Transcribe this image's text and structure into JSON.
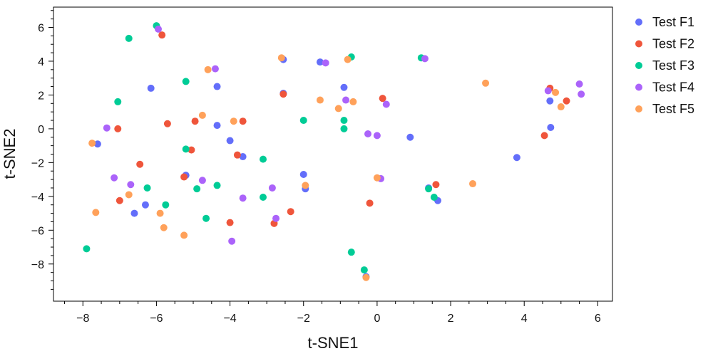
{
  "chart_data": {
    "type": "scatter",
    "title": "",
    "xlabel": "t-SNE1",
    "ylabel": "t-SNE2",
    "xlim": [
      -8.8,
      6.4
    ],
    "ylim": [
      -10.2,
      7.2
    ],
    "xticks": [
      -8,
      -6,
      -4,
      -2,
      0,
      2,
      4,
      6
    ],
    "yticks": [
      -8,
      -6,
      -4,
      -2,
      0,
      2,
      4,
      6
    ],
    "xtick_labels": [
      "−8",
      "−6",
      "−4",
      "−2",
      "0",
      "2",
      "4",
      "6"
    ],
    "ytick_labels": [
      "−8",
      "−6",
      "−4",
      "−2",
      "0",
      "2",
      "4",
      "6"
    ],
    "grid": false,
    "legend_position": "outside-right-top",
    "series": [
      {
        "name": "Test F1",
        "color": "#636efa",
        "points": [
          [
            -7.6,
            -0.9
          ],
          [
            -6.6,
            -5.0
          ],
          [
            -6.15,
            2.4
          ],
          [
            -6.3,
            -4.5
          ],
          [
            -5.2,
            -2.75
          ],
          [
            -4.35,
            0.2
          ],
          [
            -4.35,
            2.5
          ],
          [
            -4.0,
            -0.7
          ],
          [
            -3.65,
            -1.65
          ],
          [
            -2.55,
            2.1
          ],
          [
            -2.55,
            4.1
          ],
          [
            -2.0,
            -2.7
          ],
          [
            -1.95,
            -3.55
          ],
          [
            -1.55,
            3.95
          ],
          [
            -0.9,
            2.45
          ],
          [
            -0.3,
            -8.75
          ],
          [
            0.9,
            -0.5
          ],
          [
            1.4,
            -3.5
          ],
          [
            1.65,
            -4.25
          ],
          [
            3.8,
            -1.7
          ],
          [
            4.7,
            1.65
          ],
          [
            4.72,
            0.08
          ]
        ]
      },
      {
        "name": "Test F2",
        "color": "#ef553b",
        "points": [
          [
            -7.05,
            0.0
          ],
          [
            -6.45,
            -2.1
          ],
          [
            -7.0,
            -4.25
          ],
          [
            -5.85,
            5.55
          ],
          [
            -5.7,
            0.3
          ],
          [
            -5.25,
            -2.85
          ],
          [
            -5.05,
            -1.25
          ],
          [
            -4.95,
            0.45
          ],
          [
            -4.0,
            -5.55
          ],
          [
            -3.8,
            -1.55
          ],
          [
            -3.65,
            0.45
          ],
          [
            -2.8,
            -5.6
          ],
          [
            -2.55,
            2.05
          ],
          [
            -2.35,
            -4.9
          ],
          [
            -0.2,
            -4.4
          ],
          [
            0.15,
            1.8
          ],
          [
            1.6,
            -3.3
          ],
          [
            4.55,
            -0.4
          ],
          [
            4.7,
            2.4
          ],
          [
            5.15,
            1.65
          ]
        ]
      },
      {
        "name": "Test F3",
        "color": "#00cc96",
        "points": [
          [
            -7.9,
            -7.1
          ],
          [
            -7.05,
            1.6
          ],
          [
            -6.75,
            5.35
          ],
          [
            -6.0,
            6.1
          ],
          [
            -6.25,
            -3.5
          ],
          [
            -5.75,
            -4.5
          ],
          [
            -5.2,
            -1.2
          ],
          [
            -5.2,
            2.8
          ],
          [
            -4.9,
            -3.55
          ],
          [
            -4.65,
            -5.3
          ],
          [
            -4.35,
            -3.35
          ],
          [
            -3.1,
            -1.8
          ],
          [
            -3.1,
            -4.05
          ],
          [
            -2.0,
            0.5
          ],
          [
            -0.9,
            0.5
          ],
          [
            -0.9,
            0.0
          ],
          [
            -0.7,
            4.25
          ],
          [
            -0.7,
            -7.3
          ],
          [
            -0.35,
            -8.35
          ],
          [
            1.2,
            4.2
          ],
          [
            1.4,
            -3.55
          ],
          [
            1.55,
            -4.05
          ]
        ]
      },
      {
        "name": "Test F4",
        "color": "#ab63fa",
        "points": [
          [
            -7.35,
            0.05
          ],
          [
            -7.15,
            -2.9
          ],
          [
            -6.7,
            -3.3
          ],
          [
            -5.95,
            5.9
          ],
          [
            -4.75,
            -3.05
          ],
          [
            -4.4,
            3.55
          ],
          [
            -3.65,
            -4.1
          ],
          [
            -3.95,
            -6.65
          ],
          [
            -2.85,
            -3.5
          ],
          [
            -2.75,
            -5.3
          ],
          [
            -1.4,
            3.9
          ],
          [
            -0.85,
            1.7
          ],
          [
            -0.25,
            -0.3
          ],
          [
            0.0,
            -0.4
          ],
          [
            0.1,
            -2.95
          ],
          [
            0.25,
            1.45
          ],
          [
            1.3,
            4.15
          ],
          [
            4.65,
            2.25
          ],
          [
            5.5,
            2.65
          ],
          [
            5.55,
            2.05
          ]
        ]
      },
      {
        "name": "Test F5",
        "color": "#ffa15a",
        "points": [
          [
            -7.75,
            -0.85
          ],
          [
            -7.65,
            -4.95
          ],
          [
            -6.75,
            -3.9
          ],
          [
            -5.9,
            -5.0
          ],
          [
            -5.8,
            -5.85
          ],
          [
            -5.25,
            -6.3
          ],
          [
            -4.75,
            0.8
          ],
          [
            -4.6,
            3.5
          ],
          [
            -3.9,
            0.45
          ],
          [
            -2.6,
            4.2
          ],
          [
            -1.95,
            -3.35
          ],
          [
            -1.55,
            1.7
          ],
          [
            -1.05,
            1.2
          ],
          [
            -0.8,
            4.1
          ],
          [
            -0.65,
            1.6
          ],
          [
            -0.3,
            -8.8
          ],
          [
            0.0,
            -2.9
          ],
          [
            2.6,
            -3.25
          ],
          [
            2.95,
            2.7
          ],
          [
            4.85,
            2.15
          ],
          [
            5.0,
            1.3
          ]
        ]
      }
    ]
  }
}
